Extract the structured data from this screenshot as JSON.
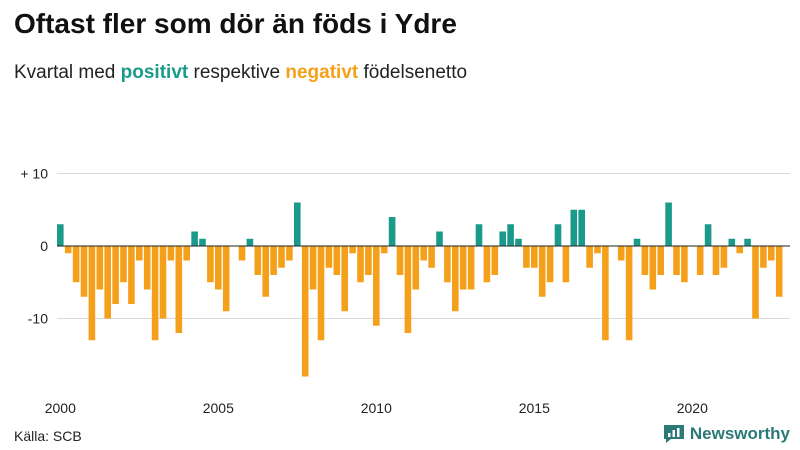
{
  "title": "Oftast fler som dör än föds i Ydre",
  "subtitle": {
    "prefix": "Kvartal med ",
    "positive": "positivt",
    "middle": " respektive ",
    "negative": "negativt",
    "suffix": " födelsenetto"
  },
  "colors": {
    "positive": "#1a9a8a",
    "negative": "#f5a01a",
    "brand": "#2b7a78"
  },
  "source": "Källa: SCB",
  "brand": {
    "name": "Newsworthy",
    "icon": "newsworthy-logo-icon"
  },
  "chart_data": {
    "type": "bar",
    "title": "Oftast fler som dör än föds i Ydre",
    "subtitle": "Kvartal med positivt respektive negativt födelsenetto",
    "xlabel": "",
    "ylabel": "",
    "ylim": [
      -18,
      10
    ],
    "grid": true,
    "y_ticks": [
      {
        "value": 10,
        "label": "+ 10"
      },
      {
        "value": 0,
        "label": "0"
      },
      {
        "value": -10,
        "label": "-10"
      }
    ],
    "x_ticks": [
      "2000",
      "2005",
      "2010",
      "2015",
      "2020"
    ],
    "start_year": 2000,
    "periods_per_year": 4,
    "values": [
      3,
      -1,
      -5,
      -7,
      -13,
      -6,
      -10,
      -8,
      -5,
      -8,
      -2,
      -6,
      -13,
      -10,
      -2,
      -12,
      -2,
      2,
      1,
      -5,
      -6,
      -9,
      0,
      -2,
      1,
      -4,
      -7,
      -4,
      -3,
      -2,
      6,
      -18,
      -6,
      -13,
      -3,
      -4,
      -9,
      -1,
      -5,
      -4,
      -11,
      -1,
      4,
      -4,
      -12,
      -6,
      -2,
      -3,
      2,
      -5,
      -9,
      -6,
      -6,
      3,
      -5,
      -4,
      2,
      3,
      1,
      -3,
      -3,
      -7,
      -5,
      3,
      -5,
      5,
      5,
      -3,
      -1,
      -13,
      0,
      -2,
      -13,
      1,
      -4,
      -6,
      -4,
      6,
      -4,
      -5,
      0,
      -4,
      3,
      -4,
      -3,
      1,
      -1,
      1,
      -10,
      -3,
      -2,
      -7
    ]
  }
}
